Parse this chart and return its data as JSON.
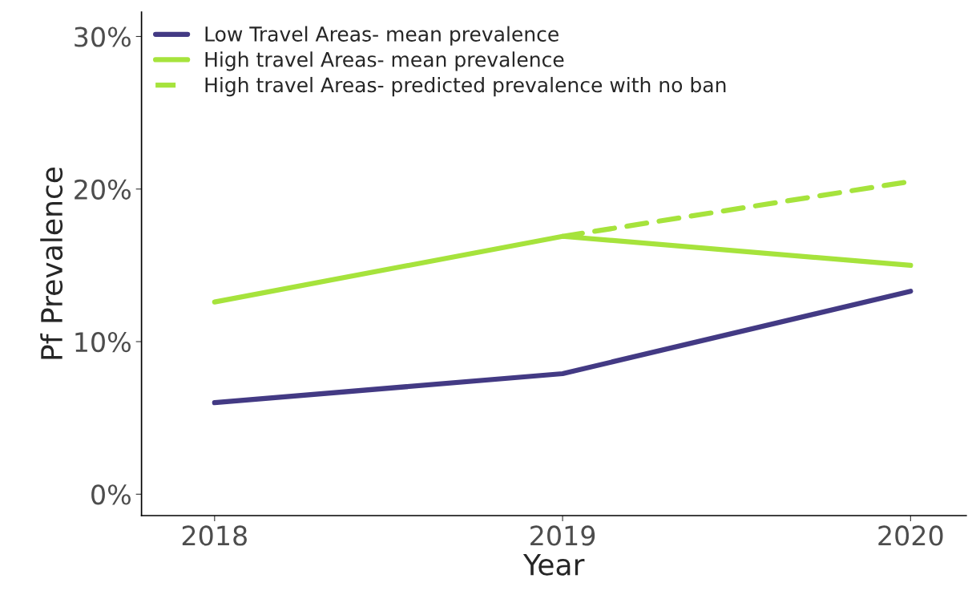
{
  "chart_data": {
    "type": "line",
    "xlabel": "Year",
    "ylabel": "Pf Prevalence",
    "x": [
      2018,
      2019,
      2020
    ],
    "series": [
      {
        "name": "Low Travel Areas- mean prevalence",
        "color": "#433a84",
        "values": [
          6.0,
          7.9,
          13.3
        ]
      },
      {
        "name": "High travel Areas- mean prevalence",
        "color": "#a6e33c",
        "values": [
          12.6,
          16.9,
          15.0
        ]
      },
      {
        "name": "High travel Areas- predicted prevalence with no ban",
        "color": "#a6e33c",
        "line_style": "dashed",
        "values": [
          null,
          16.9,
          20.5
        ]
      }
    ],
    "xlim": [
      2017.79,
      2020.16
    ],
    "xticks": [
      2018,
      2019,
      2020
    ],
    "ylim": [
      -1.4,
      31.6
    ],
    "yticks": [
      {
        "value": 0,
        "label": "0%"
      },
      {
        "value": 10,
        "label": "10%"
      },
      {
        "value": 20,
        "label": "20%"
      },
      {
        "value": 30,
        "label": "30%"
      }
    ],
    "grid": false,
    "legend": "top left",
    "marker": "none"
  }
}
